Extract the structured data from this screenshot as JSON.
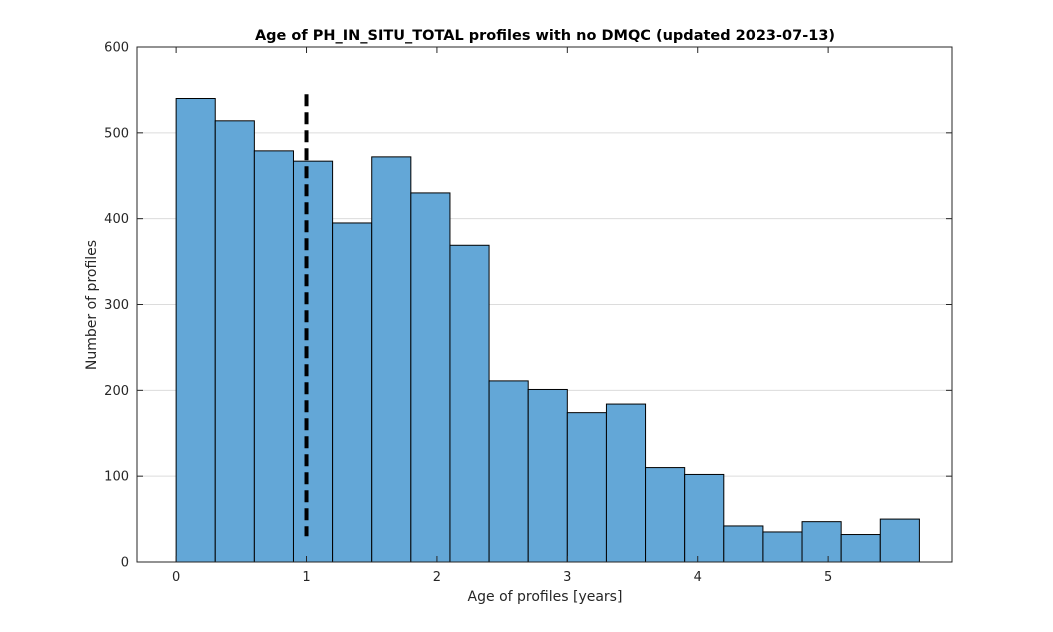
{
  "chart_data": {
    "type": "bar",
    "title": "Age of PH_IN_SITU_TOTAL profiles with no DMQC (updated 2023-07-13)",
    "xlabel": "Age of profiles [years]",
    "ylabel": "Number of profiles",
    "xlim": [
      -0.3,
      5.95
    ],
    "ylim": [
      0,
      600
    ],
    "xticks": [
      0,
      1,
      2,
      3,
      4,
      5
    ],
    "yticks": [
      0,
      100,
      200,
      300,
      400,
      500,
      600
    ],
    "grid": true,
    "bin_edges": [
      0,
      0.3,
      0.6,
      0.9,
      1.2,
      1.5,
      1.8,
      2.1,
      2.4,
      2.7,
      3.0,
      3.3,
      3.6,
      3.9,
      4.2,
      4.5,
      4.8,
      5.1,
      5.4,
      5.7
    ],
    "values": [
      540,
      514,
      479,
      467,
      395,
      472,
      430,
      369,
      211,
      201,
      174,
      184,
      110,
      102,
      42,
      35,
      47,
      32,
      50
    ],
    "bar_color": "#63a7d7",
    "reference_line": {
      "x": 1,
      "y_range": [
        30,
        545
      ],
      "style": "dashed",
      "color": "#000000"
    }
  }
}
